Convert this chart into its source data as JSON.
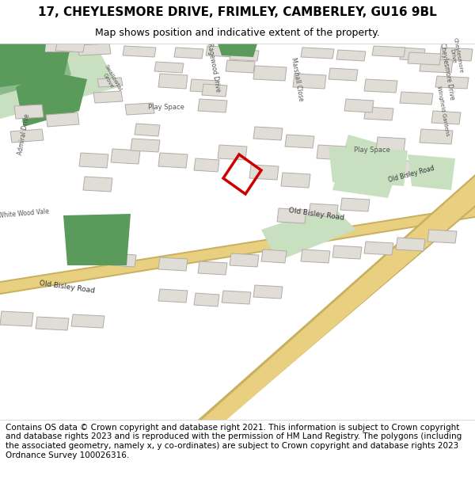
{
  "title": "17, CHEYLESMORE DRIVE, FRIMLEY, CAMBERLEY, GU16 9BL",
  "subtitle": "Map shows position and indicative extent of the property.",
  "footer": "Contains OS data © Crown copyright and database right 2021. This information is subject to Crown copyright and database rights 2023 and is reproduced with the permission of HM Land Registry. The polygons (including the associated geometry, namely x, y co-ordinates) are subject to Crown copyright and database rights 2023 Ordnance Survey 100026316.",
  "map_bg": "#f0ede8",
  "road_color": "#e8d080",
  "road_edge_color": "#c8b060",
  "building_fill": "#e0dcd6",
  "building_edge": "#b0aca8",
  "green_fill": "#5a9a5a",
  "green_light": "#c8e0c0",
  "highlight_color": "#cc0000",
  "header_bg": "#ffffff",
  "footer_bg": "#ffffff",
  "title_fontsize": 11,
  "subtitle_fontsize": 9,
  "footer_fontsize": 7.5
}
